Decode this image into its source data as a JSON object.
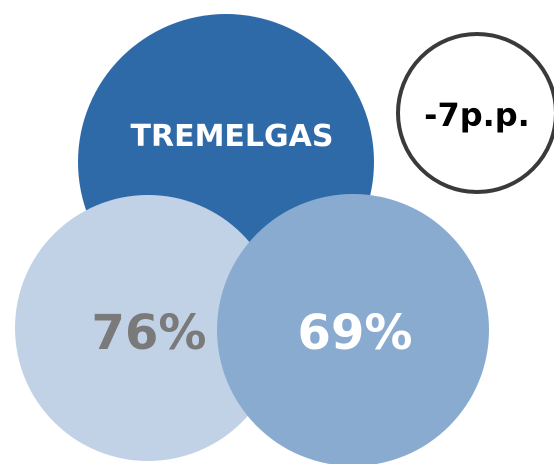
{
  "top_circle": {
    "label": "TREMELGAS",
    "color": "#2e6aa8",
    "text_color": "#ffffff"
  },
  "left_circle": {
    "label": "76%",
    "color": "#c2d2e6",
    "text_color": "#7a7a7a"
  },
  "right_circle": {
    "label": "69%",
    "color": "#8aabd0",
    "text_color": "#ffffff"
  },
  "badge": {
    "label": "-7p.p.",
    "border_color": "#3a3a3a",
    "text_color": "#000000"
  }
}
